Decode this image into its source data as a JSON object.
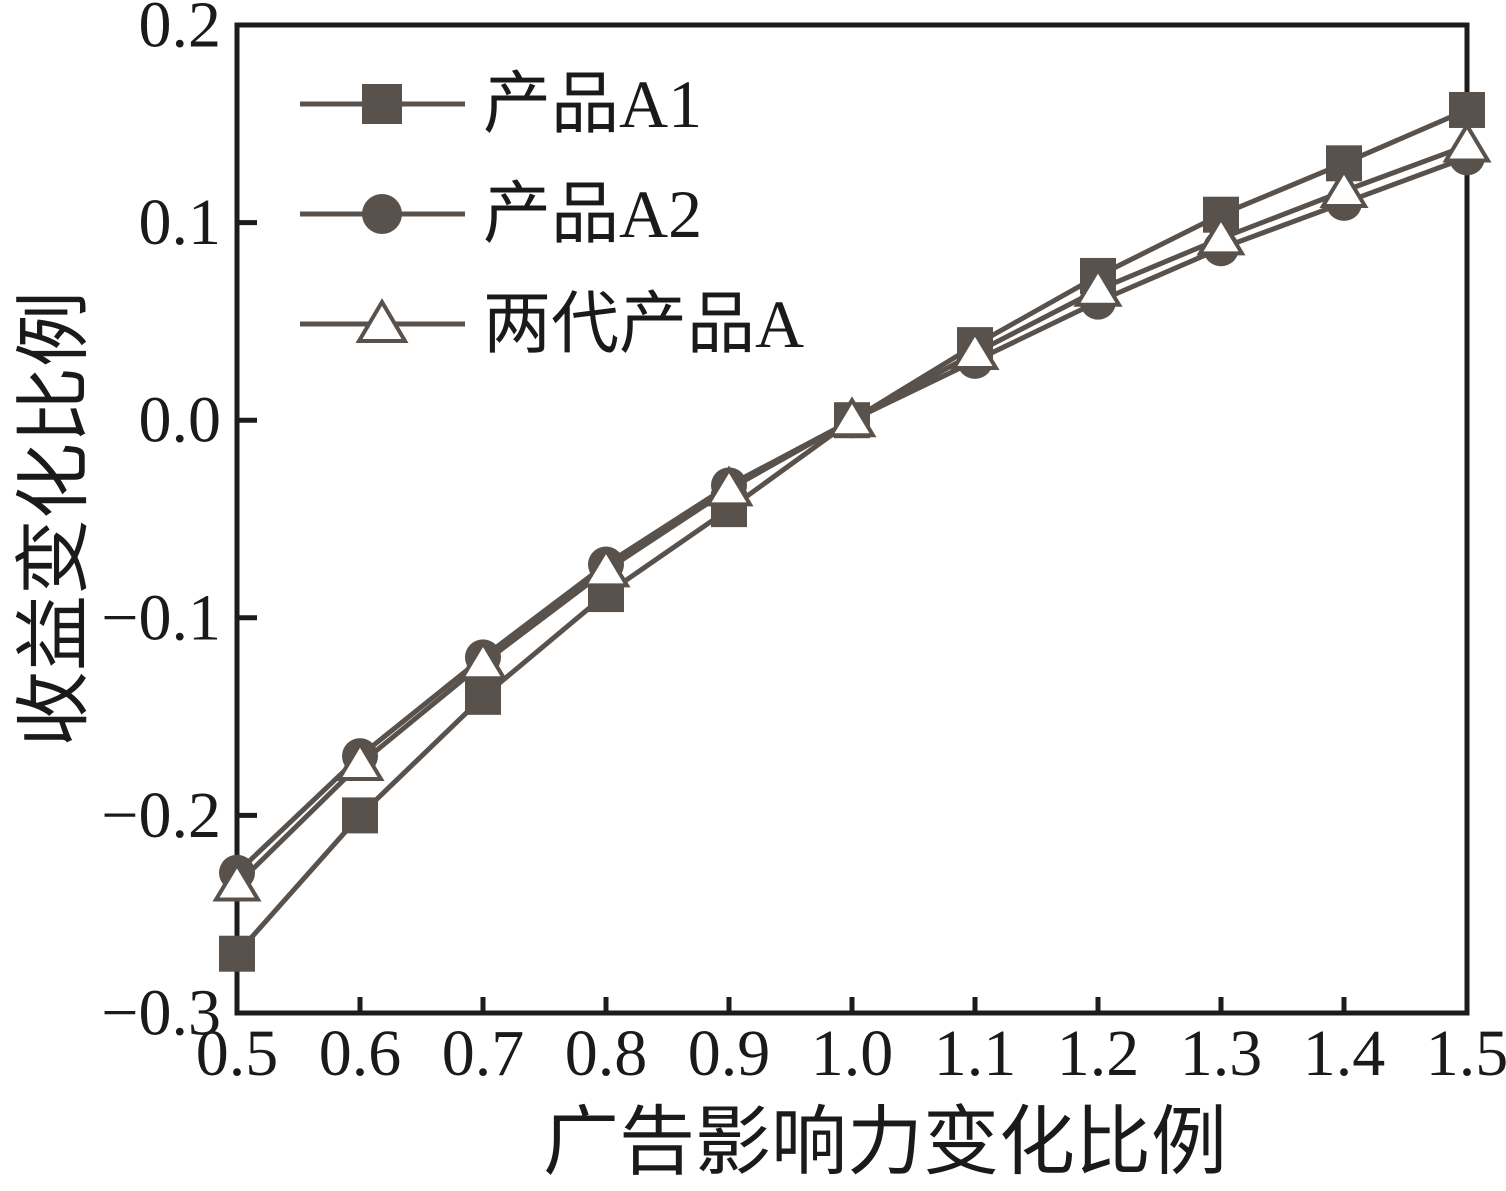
{
  "chart_data": {
    "type": "line",
    "xlabel": "广告影响力变化比例",
    "ylabel": "收益变化比例",
    "x": [
      0.5,
      0.6,
      0.7,
      0.8,
      0.9,
      1.0,
      1.1,
      1.2,
      1.3,
      1.4,
      1.5
    ],
    "x_tick_labels": [
      "0.5",
      "0.6",
      "0.7",
      "0.8",
      "0.9",
      "1.0",
      "1.1",
      "1.2",
      "1.3",
      "1.4",
      "1.5"
    ],
    "y_ticks": [
      0.2,
      0.1,
      0.0,
      -0.1,
      -0.2,
      -0.3
    ],
    "y_tick_labels": [
      "0.2",
      "0.1",
      "0.0",
      "−0.1",
      "−0.2",
      "−0.3"
    ],
    "xlim": [
      0.5,
      1.5
    ],
    "ylim": [
      -0.3,
      0.2
    ],
    "grid": false,
    "legend_position": "upper-left-inside",
    "series": [
      {
        "name": "产品A1",
        "marker": "square-filled",
        "values": [
          -0.27,
          -0.2,
          -0.14,
          -0.088,
          -0.045,
          0.0,
          0.038,
          0.073,
          0.104,
          0.13,
          0.157
        ]
      },
      {
        "name": "产品A2",
        "marker": "circle-filled",
        "values": [
          -0.229,
          -0.17,
          -0.12,
          -0.073,
          -0.033,
          0.0,
          0.03,
          0.06,
          0.087,
          0.11,
          0.133
        ]
      },
      {
        "name": "两代产品A",
        "marker": "triangle-open",
        "values": [
          -0.235,
          -0.174,
          -0.123,
          -0.076,
          -0.035,
          0.0,
          0.034,
          0.066,
          0.092,
          0.116,
          0.139
        ]
      }
    ],
    "colors": {
      "series": "#59514b",
      "axis": "#1c1c1c",
      "text": "#1a1a1a",
      "background": "#ffffff",
      "marker_open_fill": "#ffffff"
    }
  }
}
